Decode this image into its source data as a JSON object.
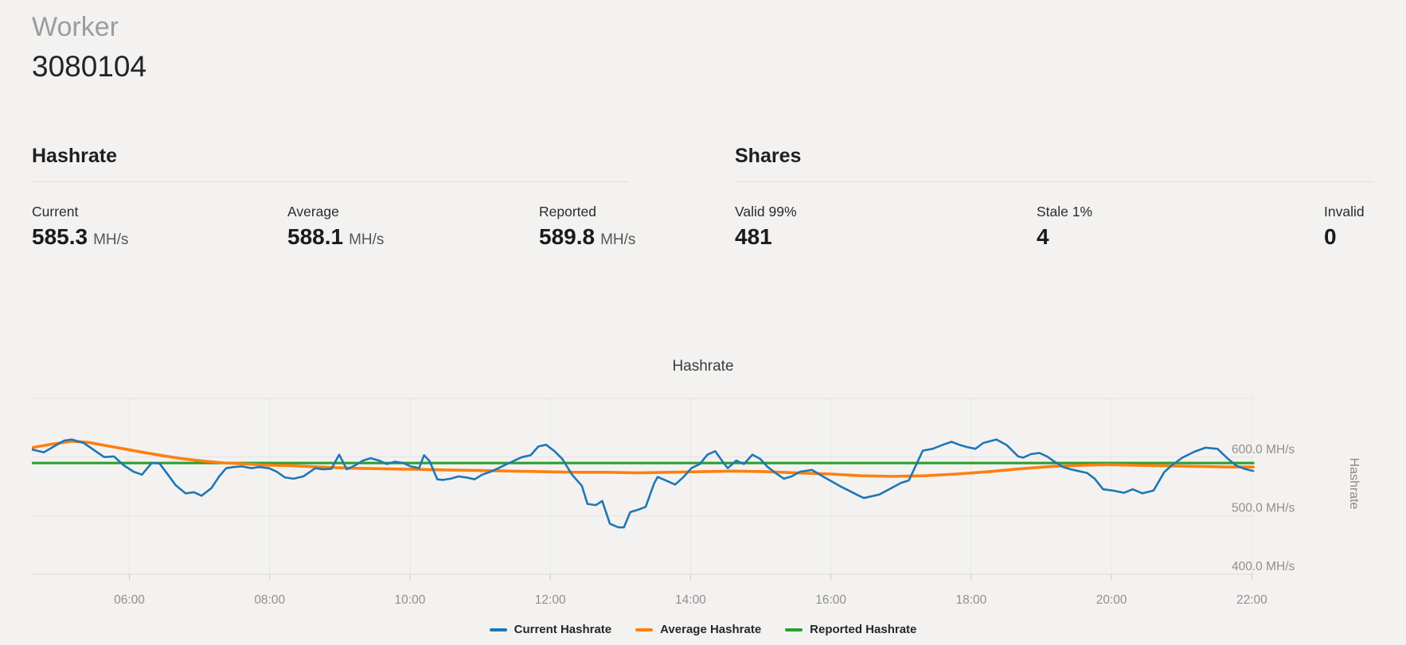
{
  "header": {
    "title": "Worker",
    "worker_id": "3080104"
  },
  "hashrate_section": {
    "heading": "Hashrate",
    "stats": [
      {
        "label": "Current",
        "value": "585.3",
        "unit": "MH/s"
      },
      {
        "label": "Average",
        "value": "588.1",
        "unit": "MH/s"
      },
      {
        "label": "Reported",
        "value": "589.8",
        "unit": "MH/s"
      }
    ]
  },
  "shares_section": {
    "heading": "Shares",
    "stats": [
      {
        "label": "Valid 99%",
        "value": "481"
      },
      {
        "label": "Stale 1%",
        "value": "4"
      },
      {
        "label": "Invalid",
        "value": "0"
      }
    ]
  },
  "chart_data": {
    "type": "line",
    "title": "Hashrate",
    "xlabel": "",
    "ylabel": "Hashrate",
    "x_unit": "time (HH:MM)",
    "y_unit": "MH/s",
    "x_range_hours": [
      4.61,
      22.03
    ],
    "ylim": [
      390,
      715
    ],
    "grid": "horizontal-and-faint-vertical",
    "gridline_values": [
      700,
      600,
      500,
      400
    ],
    "y_ticks": [
      {
        "v": 600,
        "label": "600.0 MH/s"
      },
      {
        "v": 500,
        "label": "500.0 MH/s"
      },
      {
        "v": 400,
        "label": "400.0 MH/s"
      }
    ],
    "x_ticks": [
      {
        "t": 6,
        "label": "06:00"
      },
      {
        "t": 8,
        "label": "08:00"
      },
      {
        "t": 10,
        "label": "10:00"
      },
      {
        "t": 12,
        "label": "12:00"
      },
      {
        "t": 14,
        "label": "14:00"
      },
      {
        "t": 16,
        "label": "16:00"
      },
      {
        "t": 18,
        "label": "18:00"
      },
      {
        "t": 20,
        "label": "20:00"
      },
      {
        "t": 22,
        "label": "22:00"
      }
    ],
    "legend_position": "bottom-center",
    "series": [
      {
        "name": "Current Hashrate",
        "color": "#1f77b4",
        "width": 2.6,
        "points": [
          [
            4.61,
            613
          ],
          [
            4.78,
            608
          ],
          [
            5.07,
            628
          ],
          [
            5.18,
            630
          ],
          [
            5.35,
            624
          ],
          [
            5.64,
            600
          ],
          [
            5.78,
            601
          ],
          [
            5.92,
            586
          ],
          [
            6.06,
            575
          ],
          [
            6.18,
            570
          ],
          [
            6.32,
            590
          ],
          [
            6.43,
            589
          ],
          [
            6.55,
            570
          ],
          [
            6.66,
            552
          ],
          [
            6.8,
            538
          ],
          [
            6.92,
            540
          ],
          [
            7.03,
            534
          ],
          [
            7.17,
            547
          ],
          [
            7.28,
            567
          ],
          [
            7.38,
            581
          ],
          [
            7.49,
            583
          ],
          [
            7.6,
            584
          ],
          [
            7.74,
            581
          ],
          [
            7.85,
            583
          ],
          [
            7.99,
            581
          ],
          [
            8.1,
            575
          ],
          [
            8.22,
            565
          ],
          [
            8.34,
            563
          ],
          [
            8.48,
            567
          ],
          [
            8.65,
            581
          ],
          [
            8.76,
            579
          ],
          [
            8.88,
            580
          ],
          [
            8.99,
            604
          ],
          [
            9.1,
            579
          ],
          [
            9.22,
            586
          ],
          [
            9.33,
            594
          ],
          [
            9.44,
            598
          ],
          [
            9.56,
            594
          ],
          [
            9.67,
            588
          ],
          [
            9.78,
            592
          ],
          [
            9.9,
            590
          ],
          [
            10.01,
            584
          ],
          [
            10.13,
            581
          ],
          [
            10.2,
            603
          ],
          [
            10.28,
            593
          ],
          [
            10.39,
            562
          ],
          [
            10.47,
            561
          ],
          [
            10.58,
            563
          ],
          [
            10.69,
            567
          ],
          [
            10.81,
            565
          ],
          [
            10.92,
            562
          ],
          [
            11.03,
            570
          ],
          [
            11.15,
            575
          ],
          [
            11.26,
            581
          ],
          [
            11.38,
            588
          ],
          [
            11.49,
            594
          ],
          [
            11.6,
            600
          ],
          [
            11.72,
            603
          ],
          [
            11.83,
            618
          ],
          [
            11.94,
            621
          ],
          [
            12.06,
            610
          ],
          [
            12.17,
            597
          ],
          [
            12.31,
            570
          ],
          [
            12.45,
            551
          ],
          [
            12.53,
            520
          ],
          [
            12.65,
            518
          ],
          [
            12.74,
            525
          ],
          [
            12.85,
            486
          ],
          [
            12.97,
            480
          ],
          [
            13.05,
            480
          ],
          [
            13.14,
            506
          ],
          [
            13.25,
            510
          ],
          [
            13.36,
            515
          ],
          [
            13.48,
            555
          ],
          [
            13.53,
            566
          ],
          [
            13.67,
            559
          ],
          [
            13.78,
            553
          ],
          [
            13.9,
            566
          ],
          [
            14.01,
            581
          ],
          [
            14.13,
            588
          ],
          [
            14.24,
            604
          ],
          [
            14.35,
            610
          ],
          [
            14.47,
            590
          ],
          [
            14.53,
            581
          ],
          [
            14.65,
            594
          ],
          [
            14.76,
            588
          ],
          [
            14.88,
            604
          ],
          [
            14.99,
            597
          ],
          [
            15.1,
            583
          ],
          [
            15.22,
            572
          ],
          [
            15.33,
            563
          ],
          [
            15.44,
            567
          ],
          [
            15.56,
            575
          ],
          [
            15.73,
            578
          ],
          [
            15.9,
            566
          ],
          [
            16.15,
            549
          ],
          [
            16.4,
            534
          ],
          [
            16.47,
            530
          ],
          [
            16.69,
            536
          ],
          [
            17.0,
            556
          ],
          [
            17.11,
            560
          ],
          [
            17.31,
            611
          ],
          [
            17.45,
            614
          ],
          [
            17.6,
            621
          ],
          [
            17.72,
            626
          ],
          [
            17.83,
            621
          ],
          [
            17.94,
            617
          ],
          [
            18.06,
            614
          ],
          [
            18.17,
            624
          ],
          [
            18.36,
            630
          ],
          [
            18.51,
            620
          ],
          [
            18.67,
            601
          ],
          [
            18.74,
            599
          ],
          [
            18.85,
            605
          ],
          [
            18.97,
            607
          ],
          [
            19.08,
            601
          ],
          [
            19.19,
            592
          ],
          [
            19.31,
            583
          ],
          [
            19.42,
            579
          ],
          [
            19.53,
            576
          ],
          [
            19.65,
            573
          ],
          [
            19.76,
            563
          ],
          [
            19.88,
            545
          ],
          [
            20.01,
            543
          ],
          [
            20.18,
            539
          ],
          [
            20.3,
            545
          ],
          [
            20.44,
            538
          ],
          [
            20.6,
            543
          ],
          [
            20.75,
            574
          ],
          [
            20.86,
            586
          ],
          [
            21.01,
            599
          ],
          [
            21.18,
            609
          ],
          [
            21.34,
            616
          ],
          [
            21.51,
            614
          ],
          [
            21.66,
            597
          ],
          [
            21.77,
            586
          ],
          [
            21.89,
            580
          ],
          [
            22.02,
            576
          ]
        ]
      },
      {
        "name": "Average Hashrate",
        "color": "#ff7f0e",
        "width": 3.6,
        "points": [
          [
            4.61,
            616
          ],
          [
            4.89,
            622
          ],
          [
            5.18,
            627
          ],
          [
            5.41,
            625
          ],
          [
            5.64,
            620
          ],
          [
            5.92,
            614
          ],
          [
            6.2,
            608
          ],
          [
            6.49,
            602
          ],
          [
            6.77,
            597
          ],
          [
            7.06,
            593
          ],
          [
            7.34,
            590
          ],
          [
            7.68,
            588
          ],
          [
            8.02,
            586
          ],
          [
            8.36,
            585
          ],
          [
            8.7,
            583
          ],
          [
            9.16,
            581
          ],
          [
            9.61,
            580
          ],
          [
            10.07,
            579
          ],
          [
            10.52,
            578
          ],
          [
            10.98,
            577
          ],
          [
            11.43,
            576
          ],
          [
            11.89,
            575
          ],
          [
            12.34,
            574
          ],
          [
            12.8,
            574
          ],
          [
            13.25,
            573
          ],
          [
            13.7,
            574
          ],
          [
            14.16,
            575
          ],
          [
            14.61,
            576
          ],
          [
            15.07,
            575
          ],
          [
            15.52,
            573
          ],
          [
            15.98,
            571
          ],
          [
            16.43,
            568
          ],
          [
            16.89,
            567
          ],
          [
            17.34,
            568
          ],
          [
            17.8,
            571
          ],
          [
            18.25,
            575
          ],
          [
            18.7,
            580
          ],
          [
            19.16,
            584
          ],
          [
            19.61,
            586
          ],
          [
            19.95,
            587
          ],
          [
            20.3,
            586
          ],
          [
            20.75,
            585
          ],
          [
            21.2,
            584
          ],
          [
            21.66,
            583
          ],
          [
            22.02,
            583
          ]
        ]
      },
      {
        "name": "Reported Hashrate",
        "color": "#2ca02c",
        "width": 3.2,
        "points": [
          [
            4.61,
            589.8
          ],
          [
            22.02,
            589.8
          ]
        ]
      }
    ]
  }
}
